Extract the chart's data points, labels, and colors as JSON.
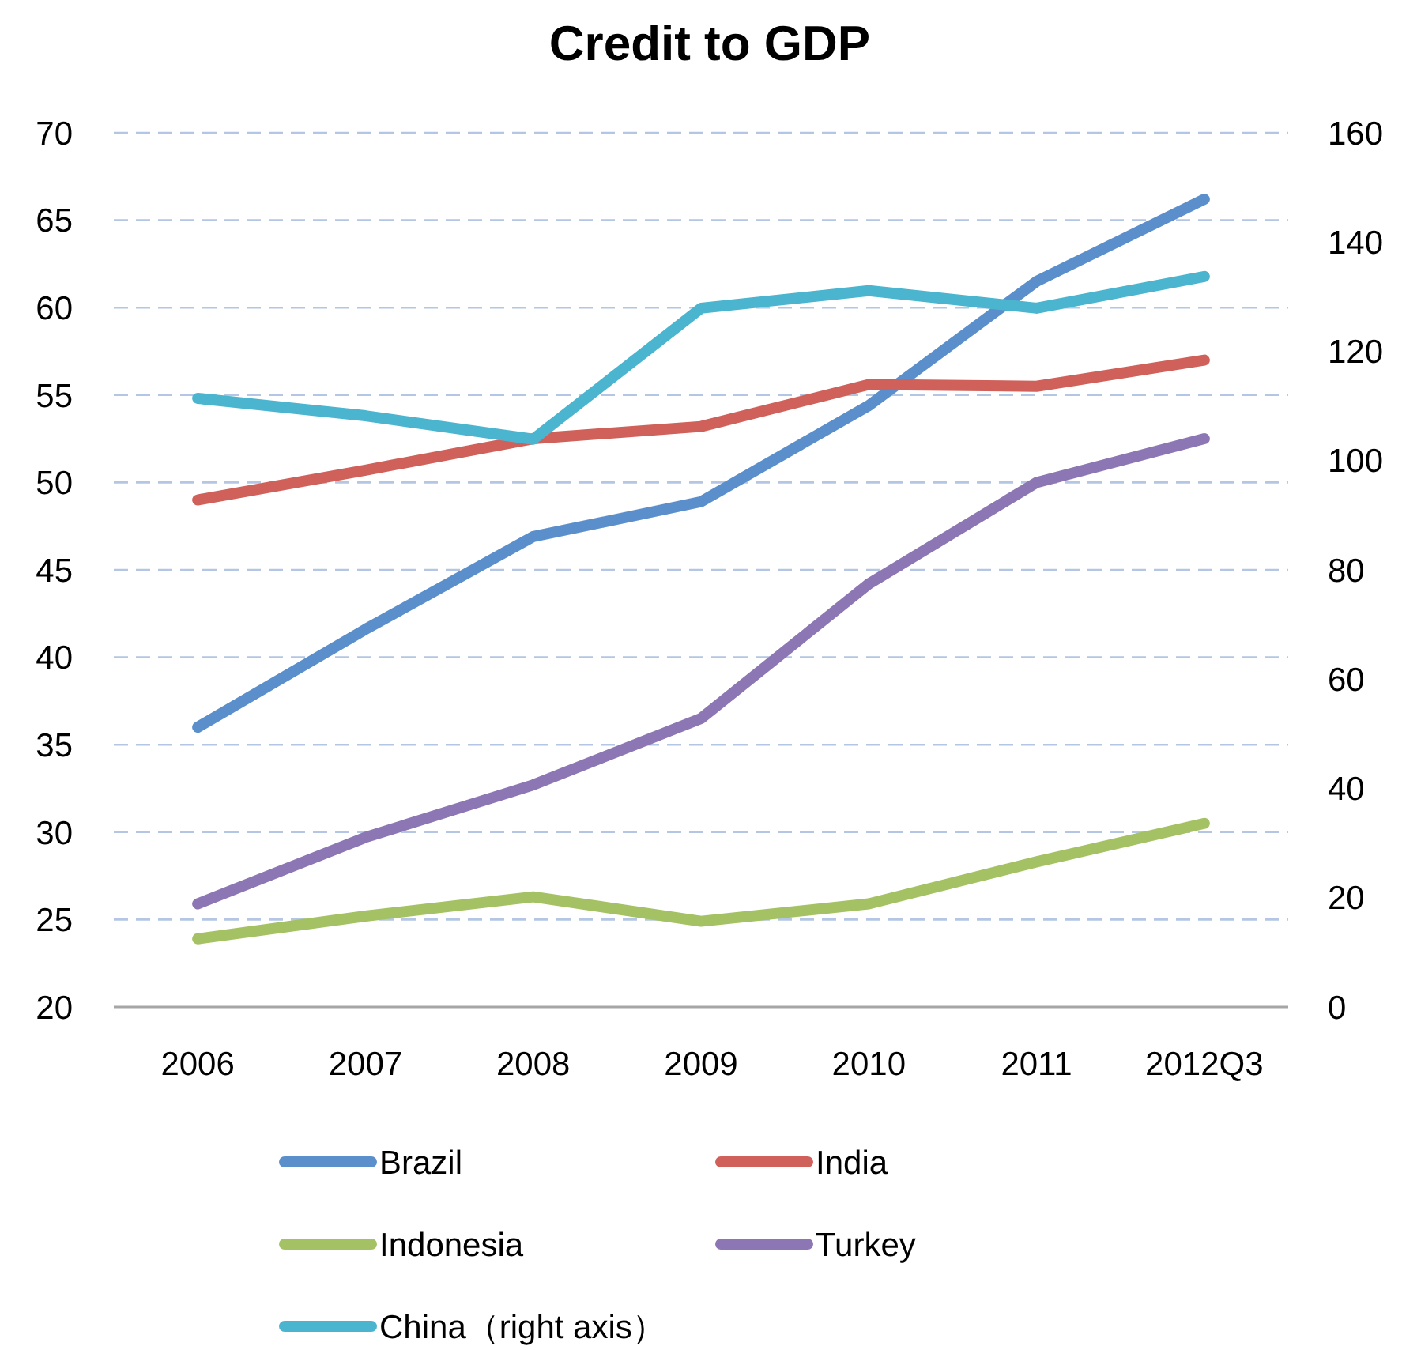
{
  "chart_data": {
    "type": "line",
    "title": "Credit to GDP",
    "categories": [
      "2006",
      "2007",
      "2008",
      "2009",
      "2010",
      "2011",
      "2012Q3"
    ],
    "ylim": [
      20,
      70
    ],
    "yticks": [
      20,
      25,
      30,
      35,
      40,
      45,
      50,
      55,
      60,
      65,
      70
    ],
    "y2lim": [
      0,
      160
    ],
    "y2ticks": [
      0,
      20,
      40,
      60,
      80,
      100,
      120,
      140,
      160
    ],
    "grid": "y",
    "legend": "bottom",
    "marker": "none",
    "line_style": "solid",
    "series": [
      {
        "name": "Brazil",
        "color": "#5b8fcc",
        "values": [
          36.0,
          41.6,
          46.9,
          48.9,
          54.4,
          61.5,
          66.2
        ]
      },
      {
        "name": "India",
        "color": "#d0605a",
        "values": [
          49.0,
          50.7,
          52.5,
          53.2,
          55.6,
          55.5,
          57.0
        ]
      },
      {
        "name": "Indonesia",
        "color": "#a4c263",
        "values": [
          23.9,
          25.2,
          26.3,
          24.9,
          25.9,
          28.3,
          30.5
        ]
      },
      {
        "name": "Turkey",
        "color": "#8c77b4",
        "values": [
          25.9,
          29.7,
          32.7,
          36.5,
          44.2,
          50.0,
          52.5
        ]
      },
      {
        "name": "China（right axis）",
        "color": "#4bb5cf",
        "axis": "y2",
        "values": [
          111.4,
          108.2,
          103.9,
          127.9,
          131.1,
          127.9,
          133.7
        ]
      }
    ]
  }
}
